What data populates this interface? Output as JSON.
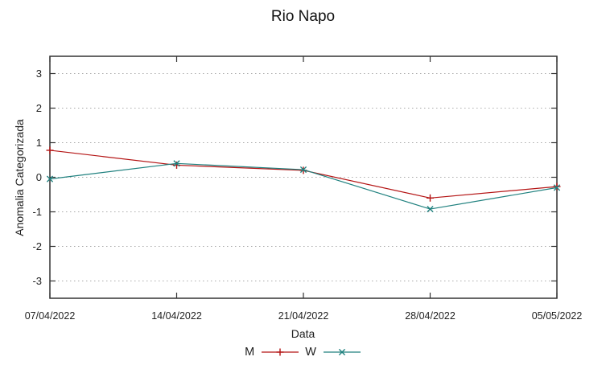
{
  "chart_data": {
    "type": "line",
    "title": "Rio Napo",
    "xlabel": "Data",
    "ylabel": "Anomalia Categorizada",
    "categories": [
      "07/04/2022",
      "14/04/2022",
      "21/04/2022",
      "28/04/2022",
      "05/05/2022"
    ],
    "series": [
      {
        "name": "M",
        "color": "#b41414",
        "marker": "plus",
        "values": [
          0.78,
          0.35,
          0.2,
          -0.6,
          -0.27
        ]
      },
      {
        "name": "W",
        "color": "#20817f",
        "marker": "cross",
        "values": [
          -0.05,
          0.4,
          0.22,
          -0.92,
          -0.3
        ]
      }
    ],
    "ylim": [
      -3.5,
      3.5
    ],
    "yticks": [
      3,
      2,
      1,
      0,
      -1,
      -2,
      -3
    ],
    "grid": "horizontal-dotted",
    "legend_position": "bottom-center",
    "colors": {
      "axis": "#333333",
      "grid": "#ababab",
      "text": "#1f1f1f"
    }
  }
}
